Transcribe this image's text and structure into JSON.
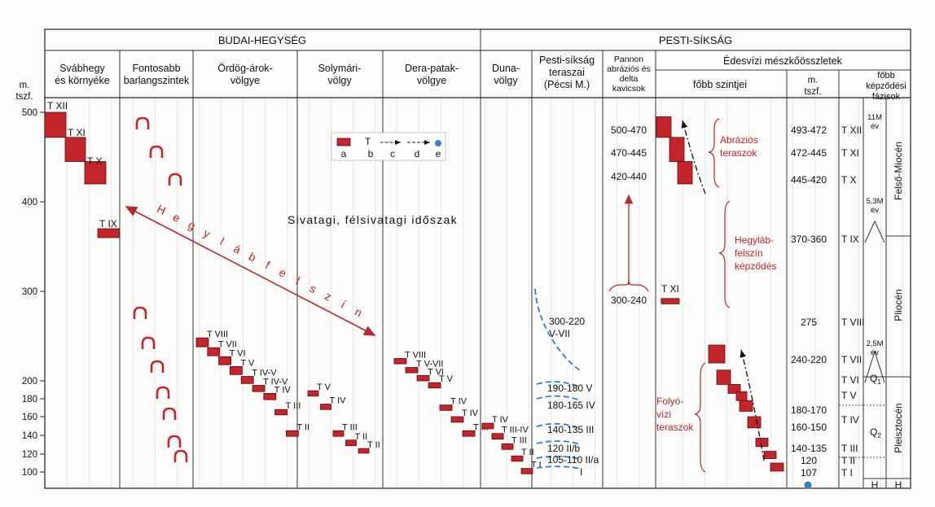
{
  "header": {
    "budai": "BUDAI-HEGYSÉG",
    "pesti": "PESTI-SÍKSÁG"
  },
  "yaxis": {
    "label_lines": [
      "m.",
      "tszf."
    ],
    "ticks": [
      500,
      400,
      300,
      200,
      180,
      160,
      140,
      120,
      100
    ]
  },
  "columns": [
    {
      "id": "svabhegy",
      "lines": [
        "Svábhegy",
        "és környéke"
      ]
    },
    {
      "id": "barlang",
      "lines": [
        "Fontosabb",
        "barlangszintek"
      ]
    },
    {
      "id": "ordog",
      "lines": [
        "Ördög-árok-",
        "völgye"
      ]
    },
    {
      "id": "solymari",
      "lines": [
        "Solymári-",
        "völgy"
      ]
    },
    {
      "id": "dera",
      "lines": [
        "Dera-patak-",
        "völgye"
      ]
    },
    {
      "id": "duna",
      "lines": [
        "Duna-",
        "völgy"
      ]
    },
    {
      "id": "pesti",
      "lines": [
        "Pesti-síkság",
        "teraszai",
        "(Pécsi M.)"
      ]
    },
    {
      "id": "pannon",
      "lines": [
        "Pannon",
        "abráziós és",
        "delta",
        "kavicsok"
      ]
    }
  ],
  "edesvizi": {
    "title": "Édesvízi mészkőösszletek",
    "sub_levels": "főbb szintjei",
    "sub_msz": [
      "m.",
      "tszf."
    ],
    "sub_phases": [
      "főbb",
      "képződési",
      "fázisok"
    ]
  },
  "legend": {
    "t_label": "T",
    "letters": [
      "a",
      "b",
      "c",
      "d",
      "e"
    ]
  },
  "svabhegy_terraces": [
    {
      "label": "T XII",
      "top": 500,
      "bottom": 472
    },
    {
      "label": "T XI",
      "top": 472,
      "bottom": 445
    },
    {
      "label": "T X",
      "top": 445,
      "bottom": 420
    },
    {
      "label": "T IX",
      "top": 370,
      "bottom": 360
    }
  ],
  "ordog_terraces": [
    {
      "label": "T VIII",
      "top": 248,
      "bottom": 238
    },
    {
      "label": "T VII",
      "top": 237,
      "bottom": 228
    },
    {
      "label": "T VI",
      "top": 227,
      "bottom": 218
    },
    {
      "label": "T V",
      "top": 216,
      "bottom": 207
    },
    {
      "label": "T IV-V",
      "top": 205,
      "bottom": 197
    },
    {
      "label": "T IV-V",
      "top": 195,
      "bottom": 188
    },
    {
      "label": "T IV",
      "top": 186,
      "bottom": 179
    },
    {
      "label": "T III",
      "top": 168,
      "bottom": 162
    },
    {
      "label": "T II",
      "top": 145,
      "bottom": 139
    }
  ],
  "solymari_terraces": [
    {
      "label": "T V",
      "top": 189,
      "bottom": 183
    },
    {
      "label": "T IV",
      "top": 174,
      "bottom": 168
    },
    {
      "label": "T III",
      "top": 145,
      "bottom": 139
    },
    {
      "label": "T II",
      "top": 135,
      "bottom": 129
    },
    {
      "label": "T II",
      "top": 126,
      "bottom": 121
    }
  ],
  "dera_terraces": [
    {
      "label": "T VIII",
      "top": 225,
      "bottom": 219
    },
    {
      "label": "T V-VII",
      "top": 215,
      "bottom": 209
    },
    {
      "label": "T VI",
      "top": 206,
      "bottom": 200
    },
    {
      "label": "T V",
      "top": 198,
      "bottom": 192
    },
    {
      "label": "T IV",
      "top": 173,
      "bottom": 167
    },
    {
      "label": "T IV",
      "top": 160,
      "bottom": 154
    },
    {
      "label": "T III",
      "top": 145,
      "bottom": 139
    }
  ],
  "duna_terraces": [
    {
      "label": "T IV",
      "top": 153,
      "bottom": 147
    },
    {
      "label": "T III-IV",
      "top": 142,
      "bottom": 136
    },
    {
      "label": "T III",
      "top": 131,
      "bottom": 125
    },
    {
      "label": "T II",
      "top": 118,
      "bottom": 112
    },
    {
      "label": "T I",
      "top": 104,
      "bottom": 98
    }
  ],
  "pesti_terraces": [
    {
      "label": "300-220",
      "label2": "V-VII",
      "y": 300,
      "y2": 220
    },
    {
      "label": "190-180 V",
      "y": 185
    },
    {
      "label": "180-165 IV",
      "y": 172
    },
    {
      "label": "140-135 III",
      "y": 137
    },
    {
      "label": "120 II/b",
      "y": 120
    },
    {
      "label": "105-110 II/a",
      "y": 107
    },
    {
      "label": "I",
      "y": 100
    }
  ],
  "pannon": [
    {
      "label": "500-470",
      "y": 485
    },
    {
      "label": "470-445",
      "y": 457
    },
    {
      "label": "420-440",
      "y": 430
    },
    {
      "label": "300-240",
      "y": 280
    }
  ],
  "edes_levels": [
    {
      "range": "493-472",
      "terrace": "T XII",
      "y": 482
    },
    {
      "range": "472-445",
      "terrace": "T XI",
      "y": 458
    },
    {
      "range": "445-420",
      "terrace": "T X",
      "y": 432
    },
    {
      "range": "370-360",
      "terrace": "T IX",
      "y": 365
    },
    {
      "range": "275",
      "terrace": "T VIII",
      "y": 275
    },
    {
      "range": "240-220",
      "terrace": "T VII",
      "y": 230
    },
    {
      "range": "",
      "terrace": "T VI",
      "y": 200
    },
    {
      "range": "",
      "terrace": "T V",
      "y": 185
    },
    {
      "range": "180-170",
      "terrace": "",
      "y": 175
    },
    {
      "range": "",
      "terrace": "T IV",
      "y": 160
    },
    {
      "range": "160-150",
      "terrace": "",
      "y": 155
    },
    {
      "range": "140-135",
      "terrace": "T III",
      "y": 138
    },
    {
      "range": "120",
      "terrace": "T II",
      "y": 120
    },
    {
      "range": "107",
      "terrace": "T I",
      "y": 107
    }
  ],
  "edes_blocks_upper": [
    {
      "top": 495,
      "bottom": 472
    },
    {
      "top": 472,
      "bottom": 445
    },
    {
      "top": 445,
      "bottom": 420
    }
  ],
  "edes_blocks_lower": [
    {
      "top": 240,
      "bottom": 220
    },
    {
      "top": 212,
      "bottom": 196
    },
    {
      "top": 196,
      "bottom": 186
    },
    {
      "top": 188,
      "bottom": 178
    },
    {
      "top": 178,
      "bottom": 166
    },
    {
      "top": 160,
      "bottom": 148
    },
    {
      "top": 137,
      "bottom": 128
    },
    {
      "top": 123,
      "bottom": 115
    },
    {
      "top": 110,
      "bottom": 101
    }
  ],
  "edes_txi": {
    "label": "T XI",
    "y": 292
  },
  "annotations": {
    "abrazios": [
      "Abráziós",
      "teraszok"
    ],
    "hegylab_label": [
      "Hegyláb-",
      "felszín",
      "képződés"
    ],
    "folyovizi": [
      "Folyó-",
      "vízi",
      "teraszok"
    ],
    "hegylabfelszin": [
      "H",
      "e",
      "g",
      "y",
      "l",
      "á",
      "b",
      "f",
      "e",
      "l",
      "s",
      "z",
      "í",
      "n"
    ],
    "sivatagi": "Sivatagi, félsivatagi időszak"
  },
  "phases": {
    "m11": [
      "11M",
      "év"
    ],
    "m53": [
      "5,3M",
      "év"
    ],
    "m25": [
      "2,5M",
      "év"
    ],
    "q1": "Q",
    "q1_sub": "1",
    "q2": "Q",
    "q2_sub": "2",
    "h": "H",
    "epochs": {
      "felso_miocen": "Felső-Miocén",
      "pliocen": "Pliocén",
      "pleisztocen": "Pleisztocén",
      "h": "H"
    }
  },
  "colors": {
    "terrace_fill": "#c4252b",
    "terrace_edge": "#5a0d10",
    "blue": "#2f7fd1",
    "red_text": "#c0242a",
    "arrow": "#b8272d"
  }
}
